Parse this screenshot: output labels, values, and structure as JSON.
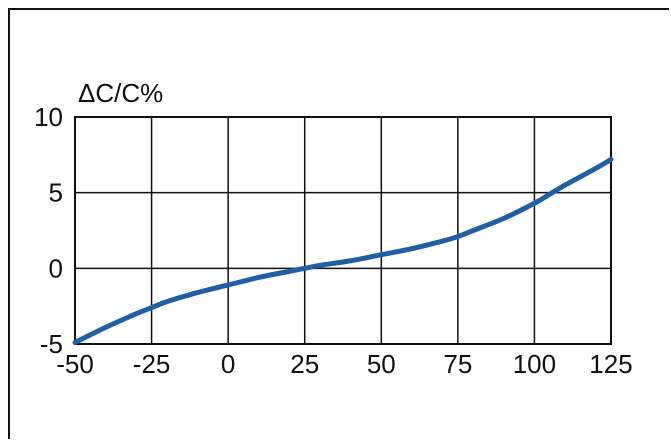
{
  "chart_data": {
    "type": "line",
    "ylabel": "ΔC/C%",
    "xlabel": "",
    "title": "",
    "xlim": [
      -50,
      125
    ],
    "ylim": [
      -5,
      10
    ],
    "x_ticks": [
      "-50",
      "-25",
      "0",
      "25",
      "50",
      "75",
      "100",
      "125"
    ],
    "y_ticks": [
      "-5",
      "0",
      "5",
      "10"
    ],
    "grid": true,
    "series": [
      {
        "color": "#1f5fa6",
        "x": [
          -50,
          -40,
          -30,
          -25,
          -20,
          -10,
          0,
          10,
          20,
          25,
          30,
          40,
          50,
          60,
          70,
          75,
          80,
          90,
          100,
          105,
          110,
          120,
          125
        ],
        "y": [
          -4.9,
          -3.9,
          -3.0,
          -2.6,
          -2.2,
          -1.6,
          -1.1,
          -0.6,
          -0.2,
          0.0,
          0.2,
          0.5,
          0.9,
          1.3,
          1.8,
          2.1,
          2.5,
          3.3,
          4.3,
          4.9,
          5.5,
          6.6,
          7.2
        ]
      }
    ]
  }
}
